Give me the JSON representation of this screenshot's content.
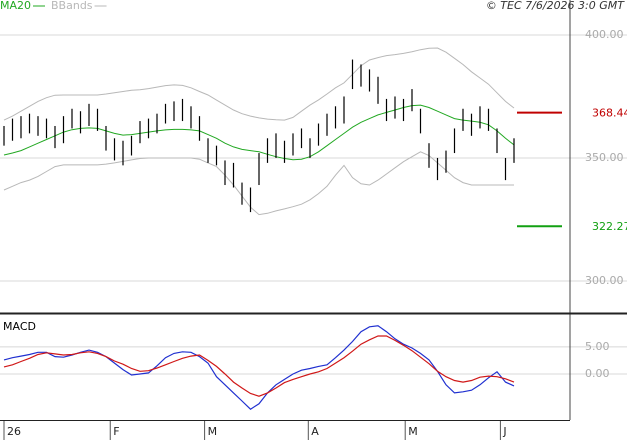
{
  "chart_data": [
    {
      "type": "stock",
      "credit": "© TEC 7/6/2026 3:0 GMT",
      "high": [
        363,
        366,
        367,
        368,
        367,
        366,
        363,
        367,
        370,
        369,
        372,
        370,
        363,
        358,
        357,
        359,
        365,
        366,
        368,
        372,
        373,
        374,
        371,
        367,
        358,
        355,
        349,
        348,
        340,
        338,
        352,
        358,
        360,
        357,
        360,
        362,
        358,
        364,
        368,
        371,
        375,
        390,
        388,
        386,
        383,
        374,
        375,
        374,
        378,
        370,
        356,
        350,
        353,
        362,
        370,
        368,
        371,
        370,
        362,
        350,
        358
      ],
      "low": [
        355,
        357,
        358,
        360,
        359,
        358,
        354,
        356,
        362,
        360,
        363,
        361,
        353,
        349,
        347,
        351,
        356,
        358,
        360,
        364,
        365,
        365,
        362,
        357,
        348,
        347,
        339,
        338,
        331,
        328,
        339,
        348,
        350,
        348,
        351,
        354,
        350,
        355,
        359,
        362,
        364,
        378,
        379,
        377,
        372,
        365,
        366,
        365,
        369,
        360,
        346,
        341,
        344,
        352,
        361,
        359,
        362,
        361,
        352,
        341,
        348
      ],
      "series": [
        {
          "name": "MA20",
          "color": "#22a822",
          "values": [
            351.2,
            352,
            353,
            354.5,
            356,
            357.5,
            359,
            360.5,
            361.5,
            362,
            362.2,
            362,
            361,
            360,
            359.3,
            359.5,
            360,
            360.5,
            361,
            361.4,
            361.6,
            361.6,
            361.4,
            361,
            359.5,
            358,
            356,
            354.5,
            353.5,
            353,
            352.5,
            351.5,
            350.5,
            349.8,
            349.3,
            349.5,
            350.5,
            352.5,
            355,
            357.5,
            360,
            362.5,
            364.5,
            366,
            367.5,
            368.5,
            369.5,
            370.5,
            371.3,
            371.5,
            370.5,
            369,
            367.5,
            366,
            365.4,
            365,
            364.5,
            363.5,
            361,
            358,
            355.3
          ]
        },
        {
          "name": "BBands",
          "color": "#b8b8b8",
          "upper": [
            365.4,
            367,
            369,
            371,
            373,
            374.5,
            375.5,
            375.6,
            375.6,
            375.6,
            375.6,
            375.6,
            376,
            376.5,
            377,
            377.5,
            377.7,
            378.2,
            378.8,
            379.4,
            379.7,
            379.5,
            378.5,
            377,
            375.6,
            373.5,
            371.5,
            369.5,
            368,
            367,
            366.3,
            365.8,
            365.5,
            365.4,
            366.5,
            369,
            371.5,
            373.6,
            376,
            378.5,
            380.5,
            384,
            387.5,
            389.8,
            390.8,
            391.6,
            392,
            392.5,
            393.2,
            394,
            394.6,
            394.7,
            393,
            390.5,
            388,
            385,
            382.5,
            380,
            376.5,
            373,
            370.3
          ],
          "lower": [
            337,
            338.5,
            340,
            341,
            342.5,
            344.5,
            346.5,
            347.2,
            347.2,
            347.2,
            347.2,
            347.2,
            347.5,
            348,
            348.6,
            349.2,
            349.8,
            350,
            350,
            350,
            350,
            350,
            350,
            349.5,
            348,
            346.5,
            343,
            339,
            334.5,
            330,
            327,
            327.5,
            328.5,
            329.3,
            330.2,
            331.2,
            333,
            335.5,
            338.5,
            343,
            347,
            342,
            339.5,
            339,
            341,
            343.5,
            346,
            348.5,
            350.5,
            352.5,
            351,
            348,
            345,
            342,
            340,
            339,
            339,
            339,
            339,
            339,
            339
          ]
        }
      ],
      "levels": [
        {
          "value": 368.44,
          "color": "#c00000"
        },
        {
          "value": 322.27,
          "color": "#12a012"
        }
      ],
      "ylim": [
        287.4,
        414.2
      ],
      "yticks": [
        {
          "value": 400,
          "label": "400.00"
        },
        {
          "value": 350,
          "label": "350.00"
        },
        {
          "value": 300,
          "label": "300.00"
        }
      ],
      "grid": true
    },
    {
      "type": "line",
      "title": "MACD",
      "series": [
        {
          "color": "#2030d0",
          "values": [
            2.6,
            3.0,
            3.3,
            3.6,
            4.0,
            4.0,
            3.2,
            3.1,
            3.5,
            4.0,
            4.4,
            4.0,
            3.2,
            2.0,
            0.8,
            -0.2,
            0.0,
            0.2,
            1.5,
            3.0,
            3.8,
            4.1,
            4.0,
            3.2,
            2.0,
            -0.5,
            -2.0,
            -3.5,
            -5.0,
            -6.5,
            -5.5,
            -3.5,
            -2.0,
            -1.0,
            0.0,
            0.7,
            1.0,
            1.4,
            1.7,
            3.0,
            4.4,
            6.0,
            7.8,
            8.7,
            8.9,
            7.8,
            6.5,
            5.5,
            4.8,
            3.8,
            2.6,
            0.5,
            -2.0,
            -3.5,
            -3.3,
            -3.0,
            -2.0,
            -0.7,
            0.4,
            -1.5,
            -2.2
          ]
        },
        {
          "color": "#d01818",
          "values": [
            1.3,
            1.7,
            2.3,
            2.9,
            3.6,
            3.9,
            3.7,
            3.5,
            3.6,
            3.9,
            4.1,
            3.8,
            3.2,
            2.4,
            1.8,
            1.0,
            0.5,
            0.6,
            1.1,
            1.7,
            2.3,
            2.9,
            3.3,
            3.5,
            2.5,
            1.4,
            0.0,
            -1.5,
            -2.6,
            -3.6,
            -4.1,
            -3.5,
            -2.6,
            -1.6,
            -1.0,
            -0.5,
            0.0,
            0.4,
            1.0,
            2.0,
            3.0,
            4.2,
            5.5,
            6.3,
            7.0,
            7.0,
            6.2,
            5.3,
            4.3,
            3.1,
            1.9,
            0.5,
            -0.5,
            -1.2,
            -1.5,
            -1.2,
            -0.6,
            -0.4,
            -0.5,
            -0.9,
            -1.5
          ]
        }
      ],
      "ylim": [
        -8.5,
        10.7
      ],
      "yticks": [
        {
          "value": 5,
          "label": "5.00"
        },
        {
          "value": 0,
          "label": "0.00"
        }
      ],
      "grid": true,
      "xlim": [
        0,
        60
      ],
      "xticks": [
        {
          "value": 0,
          "label": "26"
        },
        {
          "value": 12.5,
          "label": "F"
        },
        {
          "value": 23.6,
          "label": "M"
        },
        {
          "value": 35.8,
          "label": "A"
        },
        {
          "value": 47.2,
          "label": "M"
        },
        {
          "value": 58.4,
          "label": "J"
        }
      ]
    }
  ]
}
